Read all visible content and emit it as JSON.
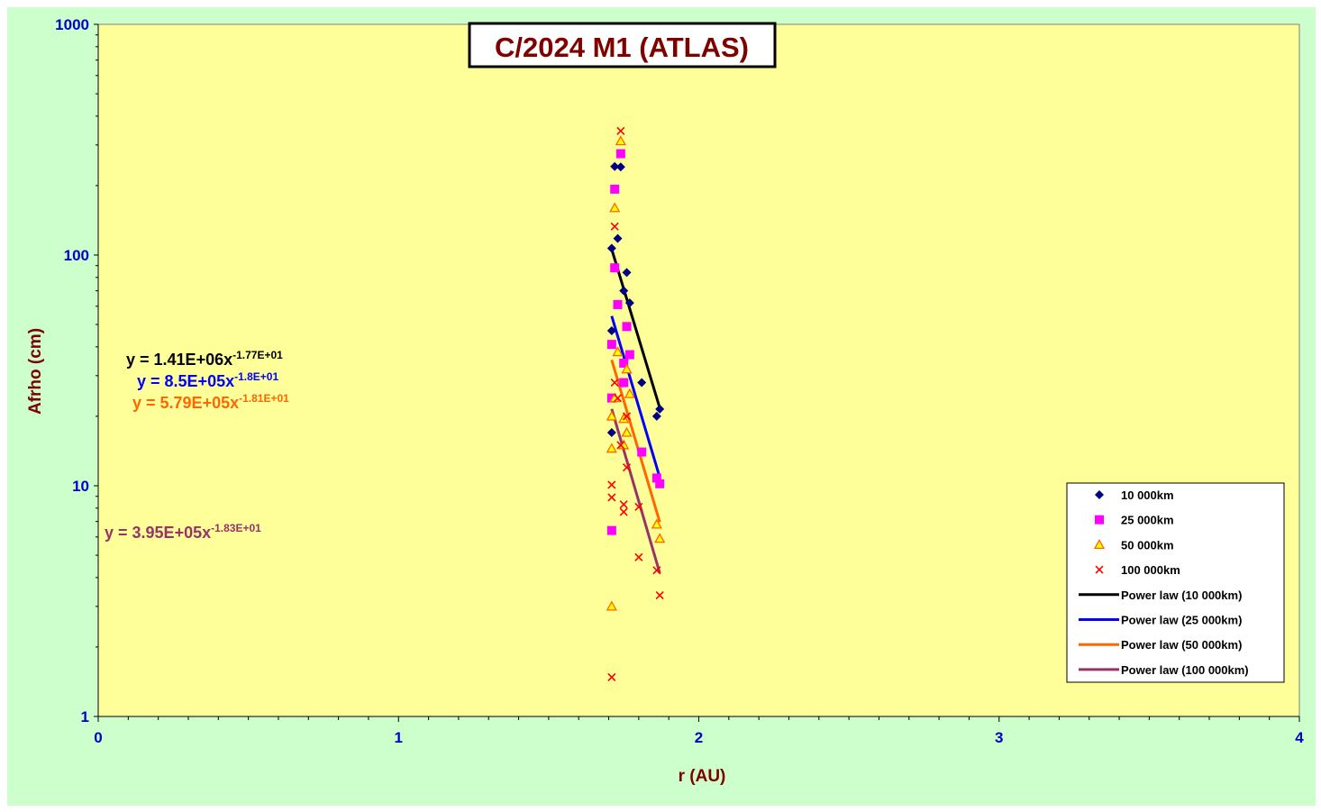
{
  "chart_data": {
    "type": "scatter",
    "title": "C/2024 M1 (ATLAS)",
    "xlabel": "r (AU)",
    "ylabel": "Afrho (cm)",
    "xlim": [
      0,
      4
    ],
    "ylim": [
      1,
      1000
    ],
    "y_scale": "log",
    "x_ticks": [
      "0",
      "1",
      "2",
      "3",
      "4"
    ],
    "y_ticks": [
      "1",
      "10",
      "100",
      "1000"
    ],
    "grid": false,
    "legend_position": "bottom-right",
    "colors": {
      "plot_bg": "#ffff99",
      "chart_bg": "#ccffcc",
      "title": "#800000",
      "axis_label": "#800000",
      "tick_label": "#0000cc"
    },
    "series": [
      {
        "name": "10 000km",
        "marker": "diamond",
        "color": "#000080",
        "points": [
          [
            1.71,
            107
          ],
          [
            1.72,
            242
          ],
          [
            1.73,
            118
          ],
          [
            1.74,
            241
          ],
          [
            1.75,
            70
          ],
          [
            1.76,
            84
          ],
          [
            1.77,
            62
          ],
          [
            1.71,
            47
          ],
          [
            1.71,
            17
          ],
          [
            1.81,
            28
          ],
          [
            1.87,
            21.5
          ],
          [
            1.86,
            20
          ]
        ]
      },
      {
        "name": "25 000km",
        "marker": "square",
        "color": "#ff00ff",
        "points": [
          [
            1.72,
            193
          ],
          [
            1.74,
            275
          ],
          [
            1.72,
            88
          ],
          [
            1.73,
            61
          ],
          [
            1.76,
            49
          ],
          [
            1.71,
            41
          ],
          [
            1.77,
            37
          ],
          [
            1.75,
            34
          ],
          [
            1.75,
            28
          ],
          [
            1.71,
            24
          ],
          [
            1.81,
            14
          ],
          [
            1.86,
            10.8
          ],
          [
            1.87,
            10.2
          ],
          [
            1.71,
            6.4
          ]
        ]
      },
      {
        "name": "50 000km",
        "marker": "triangle",
        "color": "#ff6600",
        "points": [
          [
            1.74,
            312
          ],
          [
            1.72,
            160
          ],
          [
            1.73,
            38
          ],
          [
            1.76,
            32
          ],
          [
            1.77,
            25
          ],
          [
            1.72,
            24
          ],
          [
            1.71,
            20
          ],
          [
            1.75,
            19.5
          ],
          [
            1.71,
            14.5
          ],
          [
            1.75,
            15
          ],
          [
            1.76,
            17
          ],
          [
            1.86,
            6.8
          ],
          [
            1.87,
            5.9
          ],
          [
            1.71,
            3.0
          ]
        ]
      },
      {
        "name": "100 000km",
        "marker": "x",
        "color": "#ff0000",
        "points": [
          [
            1.74,
            345
          ],
          [
            1.72,
            133
          ],
          [
            1.72,
            28
          ],
          [
            1.73,
            24
          ],
          [
            1.76,
            20
          ],
          [
            1.74,
            15
          ],
          [
            1.76,
            12
          ],
          [
            1.71,
            10.1
          ],
          [
            1.71,
            8.9
          ],
          [
            1.75,
            8.3
          ],
          [
            1.75,
            7.7
          ],
          [
            1.8,
            8.1
          ],
          [
            1.8,
            4.9
          ],
          [
            1.86,
            4.3
          ],
          [
            1.87,
            3.35
          ],
          [
            1.71,
            1.48
          ]
        ]
      }
    ],
    "fits": [
      {
        "name": "Power law (10 000km)",
        "color": "#000000",
        "a": 1410000,
        "b": -17.7,
        "xrange": [
          1.71,
          1.87
        ],
        "equation": "y = 1.41E+06x",
        "exponent": "-1.77E+01"
      },
      {
        "name": "Power law (25 000km)",
        "color": "#0000ff",
        "a": 850000,
        "b": -18.0,
        "xrange": [
          1.71,
          1.87
        ],
        "equation": "y = 8.5E+05x",
        "exponent": "-1.8E+01"
      },
      {
        "name": "Power law (50 000km)",
        "color": "#ff6600",
        "a": 579000,
        "b": -18.1,
        "xrange": [
          1.71,
          1.87
        ],
        "equation": "y = 5.79E+05x",
        "exponent": "-1.81E+01"
      },
      {
        "name": "Power law (100 000km)",
        "color": "#993366",
        "a": 395000,
        "b": -18.3,
        "xrange": [
          1.71,
          1.87
        ],
        "equation": "y = 3.95E+05x",
        "exponent": "-1.83E+01"
      }
    ]
  }
}
